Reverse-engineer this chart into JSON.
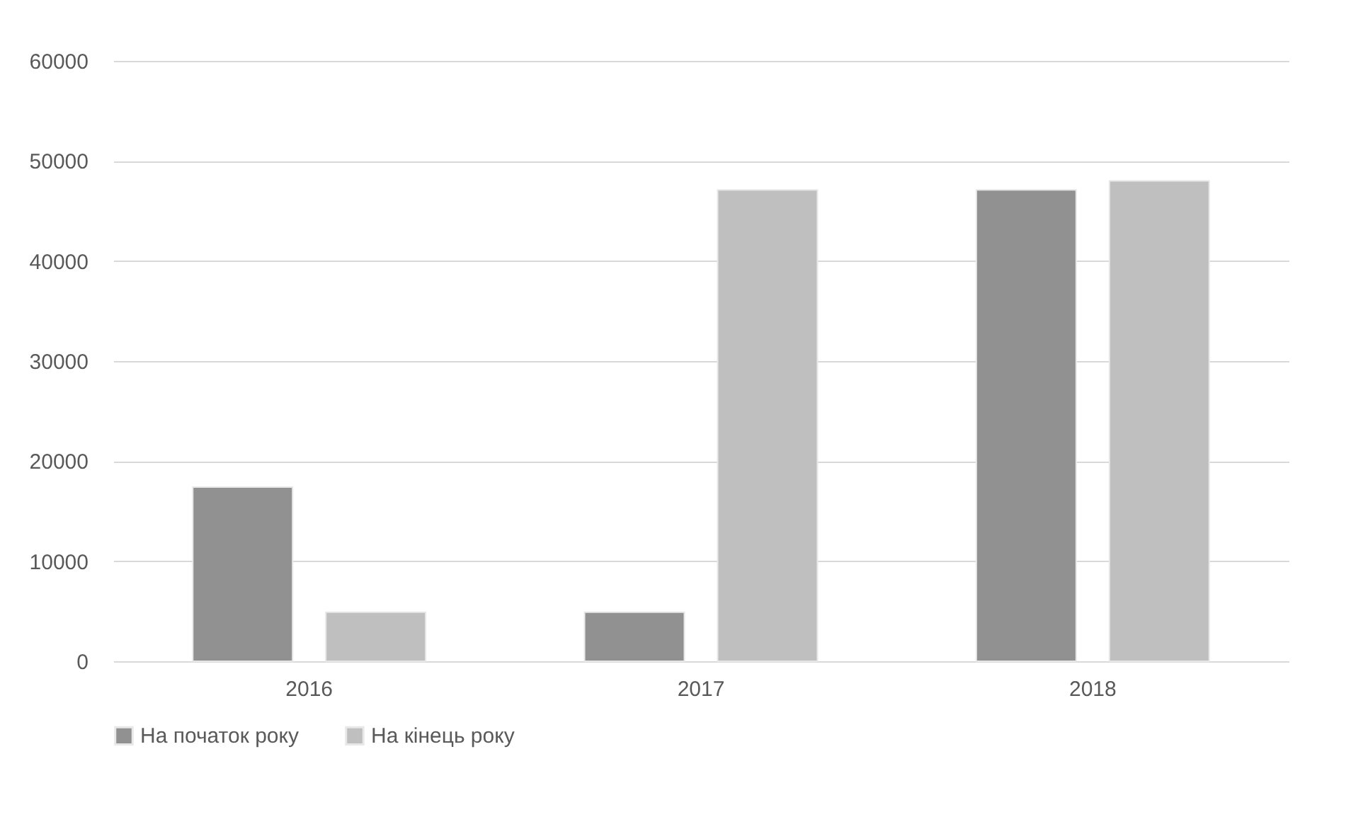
{
  "chart_data": {
    "type": "bar",
    "categories": [
      "2016",
      "2017",
      "2018"
    ],
    "series": [
      {
        "name": "На початок року",
        "color": "#919191",
        "values": [
          17400,
          4900,
          47100
        ]
      },
      {
        "name": "На кінець року",
        "color": "#bfbfbf",
        "values": [
          4900,
          47100,
          48000
        ]
      }
    ],
    "ylim": [
      0,
      60000
    ],
    "yticks": [
      0,
      10000,
      20000,
      30000,
      40000,
      50000,
      60000
    ],
    "grid": "y",
    "legend": "bottom"
  }
}
